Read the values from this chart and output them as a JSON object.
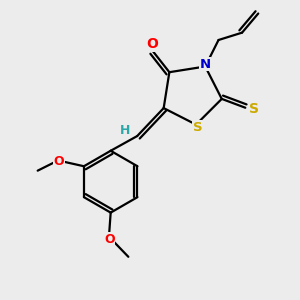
{
  "bg_color": "#ececec",
  "atom_colors": {
    "C": "#000000",
    "N": "#0000cc",
    "O": "#ff0000",
    "S": "#ccaa00",
    "H": "#2da8a8"
  },
  "line_color": "#000000",
  "line_width": 1.6,
  "fig_width": 3.0,
  "fig_height": 3.0,
  "dpi": 100
}
